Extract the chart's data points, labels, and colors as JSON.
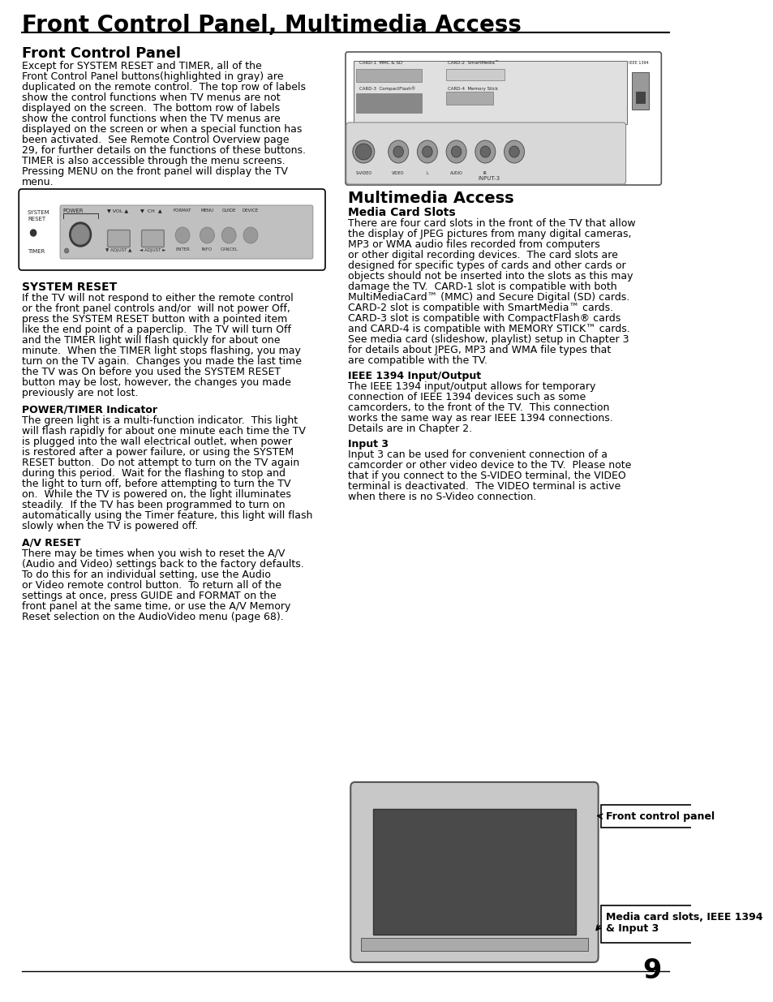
{
  "title": "Front Control Panel, Multimedia Access",
  "page_number": "9",
  "background_color": "#ffffff",
  "text_color": "#000000",
  "left_column": {
    "section1_heading": "Front Control Panel",
    "section1_body": "Except for SYSTEM RESET and TIMER, all of the\nFront Control Panel buttons(highlighted in gray) are\nduplicated on the remote control.  The top row of labels\nshow the control functions when TV menus are not\ndisplayed on the screen.  The bottom row of labels\nshow the control functions when the TV menus are\ndisplayed on the screen or when a special function has\nbeen activated.  See Remote Control Overview page\n29, for further details on the functions of these buttons.\nTIMER is also accessible through the menu screens.\nPressing MENU on the front panel will display the TV\nmenu.",
    "section2_heading": "SYSTEM RESET",
    "section2_body": "If the TV will not respond to either the remote control\nor the front panel controls and/or  will not power Off,\npress the SYSTEM RESET button with a pointed item\nlike the end point of a paperclip.  The TV will turn Off\nand the TIMER light will flash quickly for about one\nminute.  When the TIMER light stops flashing, you may\nturn on the TV again.  Changes you made the last time\nthe TV was On before you used the SYSTEM RESET\nbutton may be lost, however, the changes you made\npreviously are not lost.",
    "section3_heading": "POWER/TIMER Indicator",
    "section3_body": "The green light is a multi-function indicator.  This light\nwill flash rapidly for about one minute each time the TV\nis plugged into the wall electrical outlet, when power\nis restored after a power failure, or using the SYSTEM\nRESET button.  Do not attempt to turn on the TV again\nduring this period.  Wait for the flashing to stop and\nthe light to turn off, before attempting to turn the TV\non.  While the TV is powered on, the light illuminates\nsteadily.  If the TV has been programmed to turn on\nautomatically using the Timer feature, this light will flash\nslowly when the TV is powered off.",
    "section4_heading": "A/V RESET",
    "section4_body": "There may be times when you wish to reset the A/V\n(Audio and Video) settings back to the factory defaults.\nTo do this for an individual setting, use the Audio\nor Video remote control button.  To return all of the\nsettings at once, press GUIDE and FORMAT on the\nfront panel at the same time, or use the A/V Memory\nReset selection on the AudioVideo menu (page 68)."
  },
  "right_column": {
    "section1_heading": "Multimedia Access",
    "subsection1_heading": "Media Card Slots",
    "subsection1_body": "There are four card slots in the front of the TV that allow\nthe display of JPEG pictures from many digital cameras,\nMP3 or WMA audio files recorded from computers\nor other digital recording devices.  The card slots are\ndesigned for specific types of cards and other cards or\nobjects should not be inserted into the slots as this may\ndamage the TV.  CARD-1 slot is compatible with both\nMultiMediaCard™ (MMC) and Secure Digital (SD) cards.\nCARD-2 slot is compatible with SmartMedia™ cards.\nCARD-3 slot is compatible with CompactFlash® cards\nand CARD-4 is compatible with MEMORY STICK™ cards.\nSee media card (slideshow, playlist) setup in Chapter 3\nfor details about JPEG, MP3 and WMA file types that\nare compatible with the TV.",
    "subsection2_heading": "IEEE 1394 Input/Output",
    "subsection2_body": "The IEEE 1394 input/output allows for temporary\nconnection of IEEE 1394 devices such as some\ncamcorders, to the front of the TV.  This connection\nworks the same way as rear IEEE 1394 connections.\nDetails are in Chapter 2.",
    "subsection3_heading": "Input 3",
    "subsection3_body": "Input 3 can be used for convenient connection of a\ncamcorder or other video device to the TV.  Please note\nthat if you connect to the S-VIDEO terminal, the VIDEO\nterminal is deactivated.  The VIDEO terminal is active\nwhen there is no S-Video connection.",
    "label1": "Front control panel",
    "label2_line1": "Media card slots, IEEE 1394",
    "label2_line2": "& Input 3"
  }
}
